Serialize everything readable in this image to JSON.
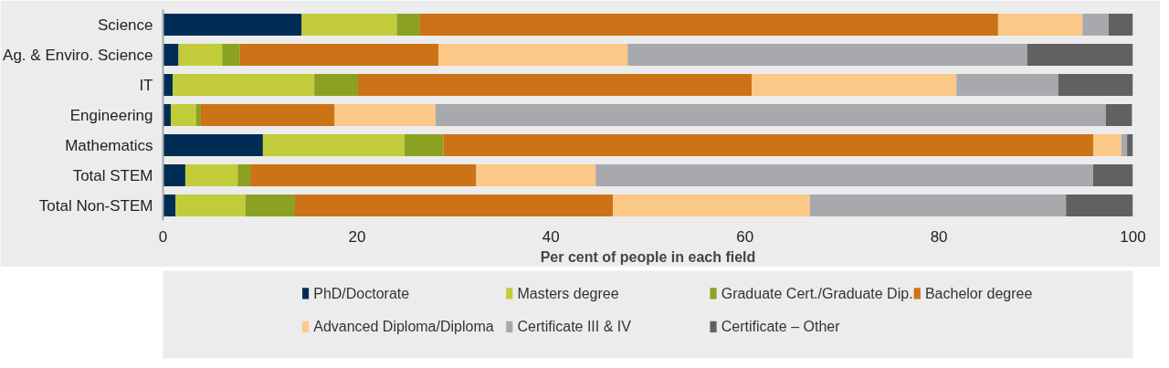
{
  "chart_data": {
    "type": "bar",
    "orientation": "horizontal",
    "stacked": true,
    "xlabel": "Per cent of people in each field",
    "categories": [
      "Science",
      "Ag. & Enviro. Science",
      "IT",
      "Engineering",
      "Mathematics",
      "Total STEM",
      "Total Non-STEM"
    ],
    "series": [
      {
        "name": "PhD/Doctorate",
        "color": "#002d56",
        "values": [
          14.3,
          1.6,
          1.0,
          0.8,
          10.3,
          2.3,
          1.3
        ]
      },
      {
        "name": "Masters degree",
        "color": "#c2cc3a",
        "values": [
          9.8,
          4.5,
          14.6,
          2.6,
          14.6,
          5.4,
          7.2
        ]
      },
      {
        "name": "Graduate Cert./Graduate Dip.",
        "color": "#8ba122",
        "values": [
          2.4,
          1.8,
          4.5,
          0.5,
          4.0,
          1.3,
          5.1
        ]
      },
      {
        "name": "Bachelor degree",
        "color": "#cb7316",
        "values": [
          59.6,
          20.5,
          40.6,
          13.8,
          67.0,
          23.3,
          32.8
        ]
      },
      {
        "name": "Advanced Diploma/Diploma",
        "color": "#fcc888",
        "values": [
          8.7,
          19.5,
          21.1,
          10.4,
          2.9,
          12.3,
          20.3
        ]
      },
      {
        "name": "Certificate III & IV",
        "color": "#a8a9ac",
        "values": [
          2.7,
          41.2,
          10.5,
          69.1,
          0.6,
          51.3,
          26.4
        ]
      },
      {
        "name": "Certificate – Other",
        "color": "#616161",
        "values": [
          2.5,
          10.9,
          7.7,
          2.7,
          0.6,
          4.1,
          6.9
        ]
      }
    ],
    "xlim": [
      0,
      100
    ],
    "xticks": [
      0,
      20,
      40,
      60,
      80,
      100
    ],
    "grid": false,
    "legend": "bottom"
  }
}
